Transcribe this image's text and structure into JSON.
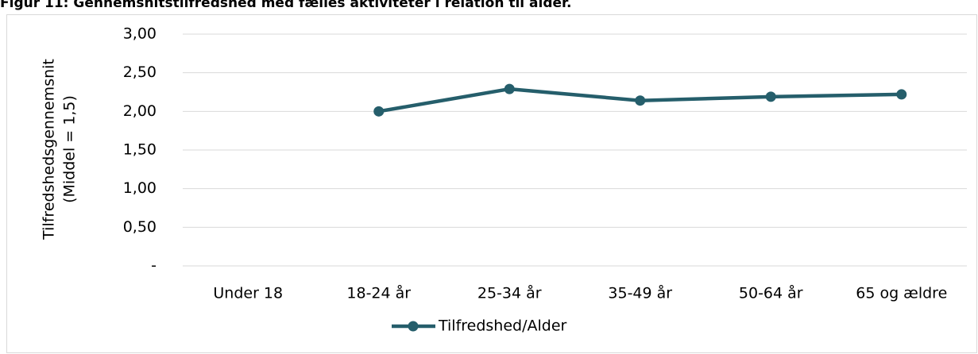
{
  "chart_data": {
    "type": "line",
    "title": "Figur 11: Gennemsnitstilfredshed med fælles aktiviteter i relation til alder.",
    "y_label": [
      "Tilfredshedsgennemsnit",
      "(Middel = 1,5)"
    ],
    "categories": [
      "Under 18",
      "18-24 år",
      "25-34 år",
      "35-49 år",
      "50-64 år",
      "65 og ældre"
    ],
    "series": [
      {
        "name": "Tilfredshed/Alder",
        "color": "#255e6b",
        "values": [
          null,
          2.0,
          2.29,
          2.14,
          2.19,
          2.22
        ]
      }
    ],
    "ylim": [
      0,
      3
    ],
    "yticks": [
      {
        "value": 0,
        "label": "-"
      },
      {
        "value": 0.5,
        "label": "0,50"
      },
      {
        "value": 1,
        "label": "1,00"
      },
      {
        "value": 1.5,
        "label": "1,50"
      },
      {
        "value": 2,
        "label": "2,00"
      },
      {
        "value": 2.5,
        "label": "2,50"
      },
      {
        "value": 3,
        "label": "3,00"
      }
    ],
    "grid": true,
    "legend": "bottom"
  }
}
